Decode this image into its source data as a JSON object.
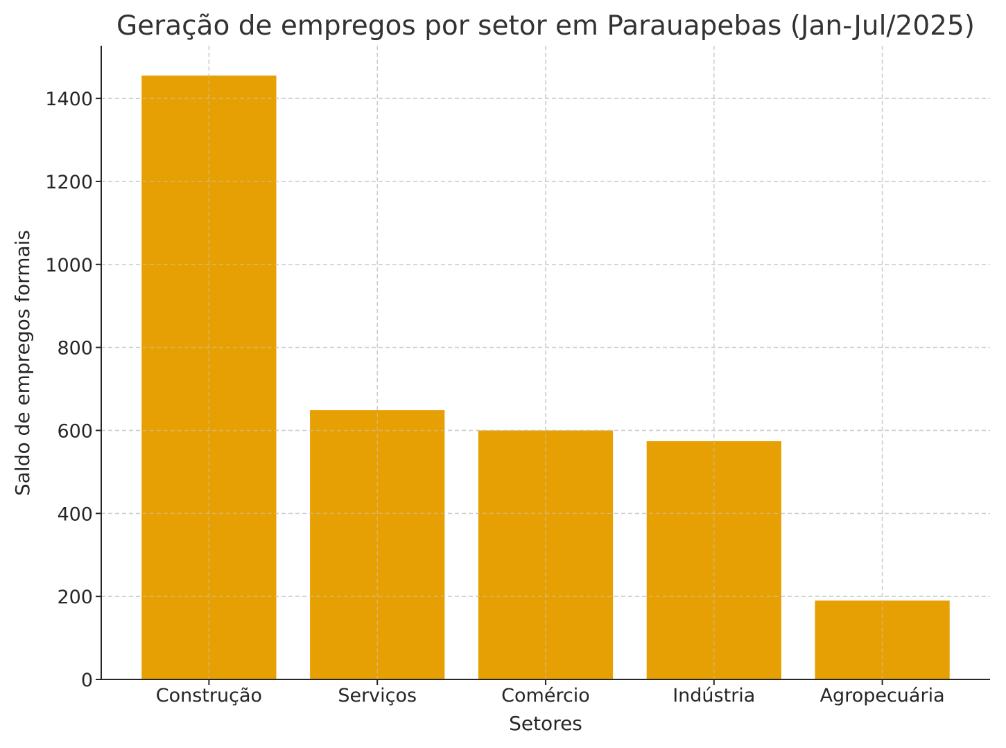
{
  "chart_data": {
    "type": "bar",
    "title": "Geração de empregos por setor em Parauapebas (Jan-Jul/2025)",
    "xlabel": "Setores",
    "ylabel": "Saldo de empregos formais",
    "categories": [
      "Construção",
      "Serviços",
      "Comércio",
      "Indústria",
      "Agropecuária"
    ],
    "values": [
      1455,
      649,
      600,
      574,
      190
    ],
    "ylim": [
      0,
      1527
    ],
    "yticks": [
      0,
      200,
      400,
      600,
      800,
      1000,
      1200,
      1400
    ],
    "grid": true,
    "bar_color": "#E69F00"
  }
}
